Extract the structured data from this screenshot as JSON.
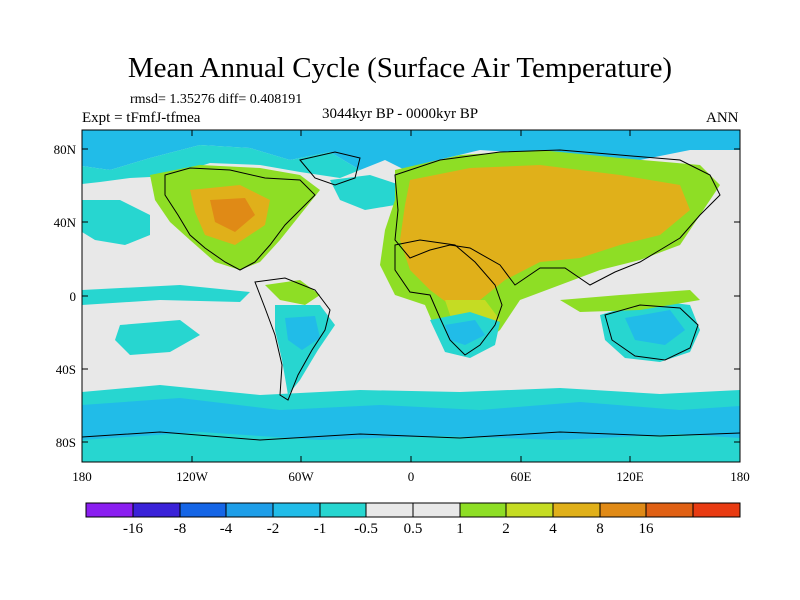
{
  "title": "Mean Annual Cycle (Surface Air Temperature)",
  "stats_text": "rmsd= 1.35276 diff= 0.408191",
  "expt_text": "Expt = tFmfJ-tfmea",
  "period_text": "3044kyr BP - 0000kyr BP",
  "season_text": "ANN",
  "lat_ticks": [
    "80N",
    "40N",
    "0",
    "40S",
    "80S"
  ],
  "lon_ticks": [
    "180",
    "120W",
    "60W",
    "0",
    "60E",
    "120E",
    "180"
  ],
  "colorbar": {
    "colors": [
      "#8a1ef0",
      "#3a22d8",
      "#1565e6",
      "#1e9ee8",
      "#21bce8",
      "#27d6d0",
      "#e8e8e8",
      "#e8e8e8",
      "#8ede25",
      "#c5dc23",
      "#e0b01a",
      "#e08a16",
      "#e06014",
      "#e83b12"
    ],
    "labels": [
      "-16",
      "-8",
      "-4",
      "-2",
      "-1",
      "-0.5",
      "0.5",
      "1",
      "2",
      "4",
      "8",
      "16"
    ]
  },
  "field_colors": {
    "neutral": "#e8e8e8",
    "warm_light": "#8ede25",
    "warm_mid": "#c5dc23",
    "warm_high": "#e0b01a",
    "warm_max": "#e08a16",
    "cool_light": "#27d6d0",
    "cool_mid": "#21bce8",
    "cool_deep": "#1e9ee8",
    "coast": "#000000"
  }
}
